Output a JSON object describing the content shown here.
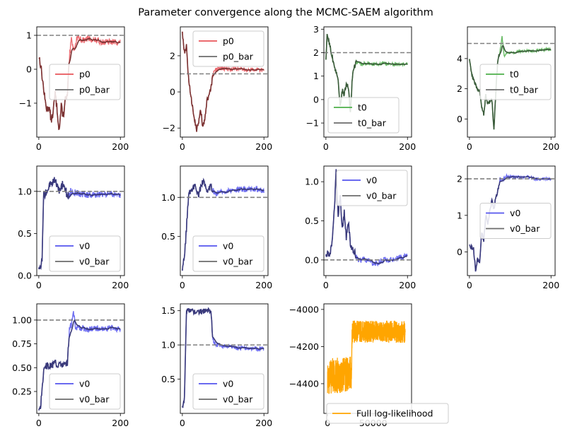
{
  "title": "Parameter convergence along the MCMC-SAEM algorithm",
  "colors": {
    "p0": "#e8545a",
    "t0": "#4daf4a",
    "v0": "#5555ee",
    "bar": "#6b6b6b",
    "overlap_p0": "#7a3232",
    "overlap_t0": "#3a5a3a",
    "overlap_v0": "#3a3a7a",
    "loglik": "#ffa500",
    "ref": "#808080"
  },
  "chart_data": [
    {
      "type": "line",
      "param": "p0",
      "xlim": [
        -5,
        210
      ],
      "ylim": [
        -2.0,
        1.25
      ],
      "xticks": [
        0,
        200
      ],
      "xtick_labels": [
        "0",
        "200"
      ],
      "yticks": [
        -1,
        0,
        1
      ],
      "ytick_labels": [
        "−1",
        "0",
        "1"
      ],
      "ref": 1.0,
      "legend": [
        "p0",
        "p0_bar"
      ],
      "legend_pos": "center-right",
      "keypoints": [
        [
          0,
          0.4
        ],
        [
          5,
          0.1
        ],
        [
          10,
          -0.4
        ],
        [
          15,
          -0.9
        ],
        [
          20,
          -1.2
        ],
        [
          25,
          -1.1
        ],
        [
          30,
          -1.5
        ],
        [
          35,
          -1.3
        ],
        [
          40,
          -0.7
        ],
        [
          45,
          -1.2
        ],
        [
          50,
          -1.8
        ],
        [
          55,
          -1.1
        ],
        [
          60,
          -1.4
        ],
        [
          65,
          -0.9
        ],
        [
          70,
          -0.8
        ],
        [
          75,
          0.3
        ],
        [
          80,
          0.9
        ],
        [
          85,
          0.6
        ],
        [
          90,
          0.7
        ],
        [
          95,
          1.0
        ],
        [
          100,
          0.9
        ],
        [
          110,
          0.85
        ],
        [
          120,
          0.9
        ],
        [
          140,
          0.85
        ],
        [
          160,
          0.8
        ],
        [
          180,
          0.8
        ],
        [
          200,
          0.8
        ]
      ],
      "noise": 0.12
    },
    {
      "type": "line",
      "param": "p0",
      "xlim": [
        -5,
        210
      ],
      "ylim": [
        -2.5,
        3.6
      ],
      "xticks": [
        0,
        200
      ],
      "xtick_labels": [
        "0",
        "200"
      ],
      "yticks": [
        -2,
        0,
        2
      ],
      "ytick_labels": [
        "−2",
        "0",
        "2"
      ],
      "ref": 1.0,
      "legend": [
        "p0",
        "p0_bar"
      ],
      "legend_pos": "top-right",
      "keypoints": [
        [
          0,
          3.3
        ],
        [
          5,
          2.2
        ],
        [
          10,
          2.5
        ],
        [
          15,
          0.8
        ],
        [
          20,
          -0.2
        ],
        [
          25,
          -0.8
        ],
        [
          30,
          -1.5
        ],
        [
          35,
          -2.1
        ],
        [
          40,
          -1.7
        ],
        [
          45,
          -1.0
        ],
        [
          50,
          -1.9
        ],
        [
          55,
          -1.6
        ],
        [
          60,
          -0.5
        ],
        [
          65,
          -0.3
        ],
        [
          70,
          0.2
        ],
        [
          75,
          0.9
        ],
        [
          80,
          1.2
        ],
        [
          90,
          1.3
        ],
        [
          100,
          1.3
        ],
        [
          120,
          1.25
        ],
        [
          140,
          1.3
        ],
        [
          160,
          1.2
        ],
        [
          180,
          1.25
        ],
        [
          200,
          1.2
        ]
      ],
      "noise": 0.15
    },
    {
      "type": "line",
      "param": "t0",
      "xlim": [
        -5,
        210
      ],
      "ylim": [
        -1.6,
        3.1
      ],
      "xticks": [
        0,
        200
      ],
      "xtick_labels": [
        "0",
        "200"
      ],
      "yticks": [
        -1,
        0,
        1,
        2,
        3
      ],
      "ytick_labels": [
        "−1",
        "0",
        "1",
        "2",
        "3"
      ],
      "ref": 2.0,
      "legend": [
        "t0",
        "t0_bar"
      ],
      "legend_pos": "bottom-left",
      "keypoints": [
        [
          0,
          1.6
        ],
        [
          3,
          2.8
        ],
        [
          10,
          2.3
        ],
        [
          20,
          1.4
        ],
        [
          30,
          0.9
        ],
        [
          35,
          -0.3
        ],
        [
          40,
          0.4
        ],
        [
          45,
          0.2
        ],
        [
          50,
          0.7
        ],
        [
          55,
          0.5
        ],
        [
          60,
          -0.6
        ],
        [
          65,
          1.0
        ],
        [
          70,
          1.4
        ],
        [
          75,
          1.6
        ],
        [
          85,
          1.5
        ],
        [
          100,
          1.55
        ],
        [
          120,
          1.5
        ],
        [
          140,
          1.55
        ],
        [
          160,
          1.5
        ],
        [
          180,
          1.5
        ],
        [
          200,
          1.5
        ]
      ],
      "noise": 0.1
    },
    {
      "type": "line",
      "param": "t0",
      "xlim": [
        -5,
        210
      ],
      "ylim": [
        -1.2,
        6.1
      ],
      "xticks": [
        0,
        200
      ],
      "xtick_labels": [
        "0",
        "200"
      ],
      "yticks": [
        0,
        2,
        4
      ],
      "ytick_labels": [
        "0",
        "2",
        "4"
      ],
      "ref": 5.0,
      "legend": [
        "t0",
        "t0_bar"
      ],
      "legend_pos": "center-right",
      "keypoints": [
        [
          0,
          4.0
        ],
        [
          5,
          3.0
        ],
        [
          10,
          2.6
        ],
        [
          20,
          2.0
        ],
        [
          25,
          1.8
        ],
        [
          30,
          0.8
        ],
        [
          35,
          0.3
        ],
        [
          40,
          1.6
        ],
        [
          45,
          1.0
        ],
        [
          55,
          1.3
        ],
        [
          60,
          -0.8
        ],
        [
          65,
          2.0
        ],
        [
          70,
          4.0
        ],
        [
          75,
          4.5
        ],
        [
          80,
          5.5
        ],
        [
          85,
          4.2
        ],
        [
          95,
          4.4
        ],
        [
          110,
          4.4
        ],
        [
          130,
          4.5
        ],
        [
          160,
          4.5
        ],
        [
          180,
          4.6
        ],
        [
          200,
          4.6
        ]
      ],
      "noise": 0.12
    },
    {
      "type": "line",
      "param": "v0",
      "xlim": [
        -5,
        210
      ],
      "ylim": [
        0.0,
        1.3
      ],
      "xticks": [
        0,
        200
      ],
      "xtick_labels": [
        "0",
        "200"
      ],
      "yticks": [
        0.0,
        0.5,
        1.0
      ],
      "ytick_labels": [
        "0.0",
        "0.5",
        "1.0"
      ],
      "ref": 1.0,
      "legend": [
        "v0",
        "v0_bar"
      ],
      "legend_pos": "bottom-right",
      "keypoints": [
        [
          0,
          0.05
        ],
        [
          5,
          0.1
        ],
        [
          8,
          0.2
        ],
        [
          12,
          0.95
        ],
        [
          20,
          1.0
        ],
        [
          30,
          1.1
        ],
        [
          40,
          1.15
        ],
        [
          50,
          1.0
        ],
        [
          60,
          1.1
        ],
        [
          70,
          0.95
        ],
        [
          80,
          1.0
        ],
        [
          100,
          0.97
        ],
        [
          120,
          0.96
        ],
        [
          140,
          0.96
        ],
        [
          160,
          0.96
        ],
        [
          180,
          0.96
        ],
        [
          200,
          0.96
        ]
      ],
      "noise": 0.05
    },
    {
      "type": "line",
      "param": "v0",
      "xlim": [
        -5,
        210
      ],
      "ylim": [
        0.0,
        1.4
      ],
      "xticks": [
        0,
        200
      ],
      "xtick_labels": [
        "0",
        "200"
      ],
      "yticks": [
        0.5,
        1.0
      ],
      "ytick_labels": [
        "0.5",
        "1.0"
      ],
      "ref": 1.0,
      "legend": [
        "v0",
        "v0_bar"
      ],
      "legend_pos": "bottom-right",
      "keypoints": [
        [
          0,
          0.1
        ],
        [
          5,
          0.2
        ],
        [
          10,
          0.6
        ],
        [
          15,
          1.0
        ],
        [
          20,
          1.1
        ],
        [
          30,
          1.15
        ],
        [
          40,
          1.05
        ],
        [
          50,
          1.2
        ],
        [
          60,
          1.1
        ],
        [
          70,
          1.15
        ],
        [
          80,
          1.05
        ],
        [
          100,
          1.08
        ],
        [
          120,
          1.08
        ],
        [
          140,
          1.1
        ],
        [
          160,
          1.1
        ],
        [
          180,
          1.1
        ],
        [
          200,
          1.08
        ]
      ],
      "noise": 0.05
    },
    {
      "type": "line",
      "param": "v0",
      "xlim": [
        -5,
        210
      ],
      "ylim": [
        -0.2,
        1.2
      ],
      "xticks": [
        0,
        200
      ],
      "xtick_labels": [
        "0",
        "200"
      ],
      "yticks": [
        0.0,
        0.5,
        1.0
      ],
      "ytick_labels": [
        "0.0",
        "0.5",
        "1.0"
      ],
      "ref": 0.0,
      "legend": [
        "v0",
        "v0_bar"
      ],
      "legend_pos": "top-right",
      "keypoints": [
        [
          0,
          0.07
        ],
        [
          10,
          0.1
        ],
        [
          15,
          0.2
        ],
        [
          20,
          0.6
        ],
        [
          25,
          1.12
        ],
        [
          30,
          0.55
        ],
        [
          35,
          0.8
        ],
        [
          40,
          0.4
        ],
        [
          45,
          0.6
        ],
        [
          50,
          0.3
        ],
        [
          55,
          0.5
        ],
        [
          60,
          0.2
        ],
        [
          70,
          0.1
        ],
        [
          80,
          0.0
        ],
        [
          100,
          0.0
        ],
        [
          120,
          -0.05
        ],
        [
          140,
          0.0
        ],
        [
          160,
          0.0
        ],
        [
          180,
          0.03
        ],
        [
          200,
          0.05
        ]
      ],
      "noise": 0.05
    },
    {
      "type": "line",
      "param": "v0",
      "xlim": [
        -5,
        210
      ],
      "ylim": [
        -0.65,
        2.35
      ],
      "xticks": [
        0,
        200
      ],
      "xtick_labels": [
        "0",
        "200"
      ],
      "yticks": [
        0,
        1,
        2
      ],
      "ytick_labels": [
        "0",
        "1",
        "2"
      ],
      "ref": 2.0,
      "legend": [
        "v0",
        "v0_bar"
      ],
      "legend_pos": "center-right",
      "keypoints": [
        [
          0,
          0.15
        ],
        [
          10,
          0.1
        ],
        [
          15,
          -0.5
        ],
        [
          20,
          -0.2
        ],
        [
          25,
          -0.3
        ],
        [
          30,
          0.5
        ],
        [
          35,
          0.3
        ],
        [
          40,
          1.0
        ],
        [
          45,
          0.8
        ],
        [
          55,
          1.4
        ],
        [
          60,
          1.2
        ],
        [
          65,
          1.5
        ],
        [
          70,
          1.7
        ],
        [
          75,
          2.0
        ],
        [
          80,
          1.95
        ],
        [
          90,
          2.1
        ],
        [
          100,
          2.05
        ],
        [
          120,
          2.05
        ],
        [
          140,
          2.05
        ],
        [
          160,
          2.0
        ],
        [
          180,
          2.0
        ],
        [
          200,
          2.0
        ]
      ],
      "noise": 0.06
    },
    {
      "type": "line",
      "param": "v0",
      "xlim": [
        -5,
        210
      ],
      "ylim": [
        0.02,
        1.17
      ],
      "xticks": [
        0,
        200
      ],
      "xtick_labels": [
        "0",
        "200"
      ],
      "yticks": [
        0.25,
        0.5,
        0.75,
        1.0
      ],
      "ytick_labels": [
        "0.25",
        "0.50",
        "0.75",
        "1.00"
      ],
      "ref": 1.0,
      "legend": [
        "v0",
        "v0_bar"
      ],
      "legend_pos": "bottom-right",
      "keypoints": [
        [
          0,
          0.07
        ],
        [
          5,
          0.1
        ],
        [
          8,
          0.3
        ],
        [
          12,
          0.48
        ],
        [
          20,
          0.52
        ],
        [
          40,
          0.54
        ],
        [
          60,
          0.52
        ],
        [
          70,
          0.55
        ],
        [
          75,
          0.9
        ],
        [
          80,
          0.95
        ],
        [
          85,
          1.1
        ],
        [
          90,
          0.9
        ],
        [
          100,
          0.92
        ],
        [
          120,
          0.9
        ],
        [
          140,
          0.92
        ],
        [
          160,
          0.9
        ],
        [
          180,
          0.92
        ],
        [
          200,
          0.9
        ]
      ],
      "noise": 0.04
    },
    {
      "type": "line",
      "param": "v0",
      "xlim": [
        -5,
        210
      ],
      "ylim": [
        0.0,
        1.6
      ],
      "xticks": [
        0,
        200
      ],
      "xtick_labels": [
        "0",
        "200"
      ],
      "yticks": [
        0.5,
        1.0,
        1.5
      ],
      "ytick_labels": [
        "0.5",
        "1.0",
        "1.5"
      ],
      "ref": 1.0,
      "legend": [
        "v0",
        "v0_bar"
      ],
      "legend_pos": "bottom-right",
      "keypoints": [
        [
          0,
          0.1
        ],
        [
          5,
          0.2
        ],
        [
          8,
          1.0
        ],
        [
          10,
          1.5
        ],
        [
          20,
          1.5
        ],
        [
          40,
          1.48
        ],
        [
          60,
          1.5
        ],
        [
          70,
          1.5
        ],
        [
          75,
          1.05
        ],
        [
          85,
          1.0
        ],
        [
          100,
          0.98
        ],
        [
          120,
          0.98
        ],
        [
          140,
          0.95
        ],
        [
          160,
          0.95
        ],
        [
          180,
          0.95
        ],
        [
          200,
          0.95
        ]
      ],
      "noise": 0.04
    },
    {
      "type": "line",
      "param": "loglik",
      "xlim": [
        -4000,
        92000
      ],
      "ylim": [
        -4560,
        -3970
      ],
      "xticks": [
        0,
        50000
      ],
      "xtick_labels": [
        "0",
        "50000"
      ],
      "yticks": [
        -4400,
        -4200,
        -4000
      ],
      "ytick_labels": [
        "−4400",
        "−4200",
        "−4000"
      ],
      "ref": null,
      "legend": [
        "Full log-likelihood"
      ],
      "legend_pos": "bottom-right-outside",
      "keypoints": [
        [
          0,
          -4360
        ],
        [
          26000,
          -4350
        ],
        [
          27000,
          -4120
        ],
        [
          85000,
          -4120
        ]
      ],
      "noise": 60
    }
  ]
}
